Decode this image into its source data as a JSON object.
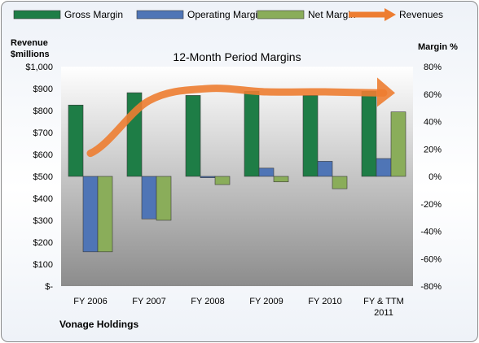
{
  "chart_data": {
    "type": "bar",
    "title": "12-Month Period Margins",
    "categories": [
      "FY 2006",
      "FY 2007",
      "FY 2008",
      "FY 2009",
      "FY 2010",
      "FY & TTM 2011"
    ],
    "category_lines": [
      [
        "FY 2006"
      ],
      [
        "FY 2007"
      ],
      [
        "FY 2008"
      ],
      [
        "FY 2009"
      ],
      [
        "FY 2010"
      ],
      [
        "FY & TTM",
        "2011"
      ]
    ],
    "series": [
      {
        "name": "Gross Margin",
        "axis": "right",
        "kind": "bar",
        "color": "#1e7d46",
        "values": [
          52,
          61,
          59,
          62,
          59,
          62
        ]
      },
      {
        "name": "Operating Margin",
        "axis": "right",
        "kind": "bar",
        "color": "#4f75b6",
        "values": [
          -55,
          -31,
          -1,
          6,
          11,
          13
        ]
      },
      {
        "name": "Net Margin",
        "axis": "right",
        "kind": "bar",
        "color": "#8aad5a",
        "values": [
          -55,
          -32,
          -6,
          -4,
          -9,
          47
        ]
      },
      {
        "name": "Revenues",
        "axis": "left",
        "kind": "line",
        "color": "#ed7d31",
        "values": [
          605,
          845,
          900,
          885,
          885,
          880
        ]
      }
    ],
    "left_axis": {
      "label_lines": [
        "Revenue",
        "$millions"
      ],
      "ylim": [
        0,
        1000
      ],
      "ticks": [
        "$-",
        "$100",
        "$200",
        "$300",
        "$400",
        "$500",
        "$600",
        "$700",
        "$800",
        "$900",
        "$1,000"
      ]
    },
    "right_axis": {
      "label": "Margin %",
      "ylim": [
        -80,
        80
      ],
      "ticks": [
        "-80%",
        "-60%",
        "-40%",
        "-20%",
        "0%",
        "20%",
        "40%",
        "60%",
        "80%"
      ]
    },
    "legend_position": "top",
    "grid": false,
    "caption": "Vonage Holdings"
  }
}
